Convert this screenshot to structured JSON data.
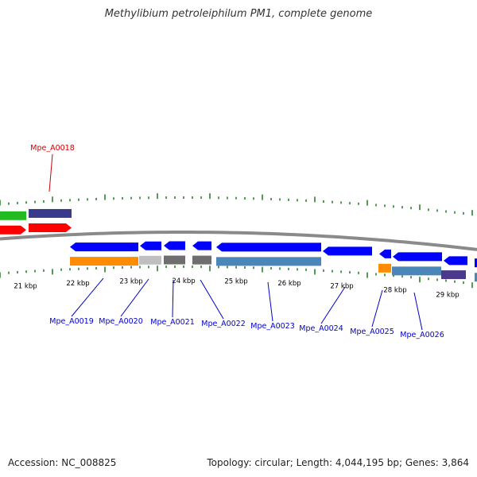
{
  "title": "Methylibium petroleiphilum PM1, complete genome",
  "footer": {
    "accession": "Accession: NC_008825",
    "summary": "Topology: circular; Length: 4,044,195 bp; Genes: 3,864"
  },
  "colors": {
    "tick": "#1a7a1a",
    "backbone": "#8a8a8a",
    "label_top": "#cc0000",
    "label_bottom": "#0000cc",
    "cds_forward": "#ff0000",
    "cds_reverse": "#0000ff",
    "cog_green": "#22bb22",
    "cog_indigo": "#3a3a8c",
    "cog_orange": "#ff8c00",
    "cog_lightgray": "#bfbfbf",
    "cog_gray": "#6e6e6e",
    "cog_steelblue": "#4a86b8",
    "cog_darkpurple": "#4b3a8c"
  },
  "kbp_labels": [
    "21 kbp",
    "22 kbp",
    "23 kbp",
    "24 kbp",
    "25 kbp",
    "26 kbp",
    "27 kbp",
    "28 kbp",
    "29 kbp"
  ],
  "gene_labels_top": [
    "Mpe_A0018"
  ],
  "gene_labels_bottom": [
    "Mpe_A0019",
    "Mpe_A0020",
    "Mpe_A0021",
    "Mpe_A0022",
    "Mpe_A0023",
    "Mpe_A0024",
    "Mpe_A0025",
    "Mpe_A0026"
  ]
}
